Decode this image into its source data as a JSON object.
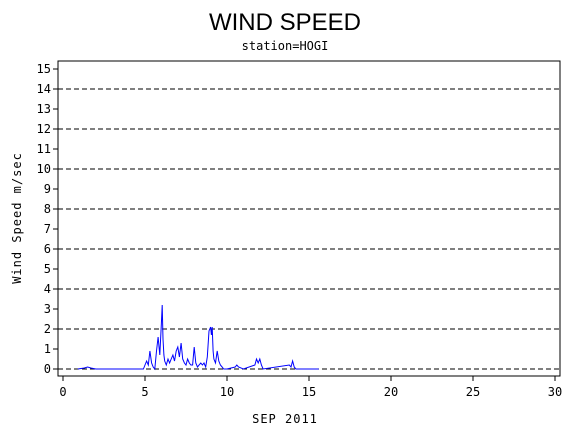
{
  "chart_data": {
    "type": "line",
    "title": "WIND SPEED",
    "subtitle": "station=HOGI",
    "xlabel": "SEP 2011",
    "ylabel": "Wind Speed m/sec",
    "xlim": [
      0,
      30
    ],
    "ylim": [
      0,
      15
    ],
    "x_ticks": [
      0,
      5,
      10,
      15,
      20,
      25,
      30
    ],
    "y_ticks": [
      0,
      1,
      2,
      3,
      4,
      5,
      6,
      7,
      8,
      9,
      10,
      11,
      12,
      13,
      14,
      15
    ],
    "grid": {
      "y_dashed_at": [
        0,
        2,
        4,
        6,
        8,
        10,
        12,
        14
      ]
    },
    "line_color": "#0000ff",
    "grid_color": "#000000",
    "series": [
      {
        "x": [
          0.9,
          1.3,
          1.5,
          1.7,
          2.0,
          4.9,
          5.0,
          5.1,
          5.2,
          5.3,
          5.4,
          5.5,
          5.6,
          5.7,
          5.8,
          5.9,
          6.0,
          6.05,
          6.1,
          6.15,
          6.2,
          6.3,
          6.4,
          6.5,
          6.6,
          6.7,
          6.8,
          6.9,
          7.0,
          7.1,
          7.2,
          7.25,
          7.3,
          7.4,
          7.5,
          7.6,
          7.7,
          7.8,
          7.9,
          8.0,
          8.1,
          8.2,
          8.3,
          8.4,
          8.5,
          8.6,
          8.7,
          8.8,
          8.9,
          9.0,
          9.05,
          9.1,
          9.15,
          9.2,
          9.3,
          9.4,
          9.5,
          9.6,
          9.7,
          9.8,
          10.0,
          10.5,
          10.6,
          10.7,
          11.0,
          11.7,
          11.8,
          11.9,
          12.0,
          12.1,
          12.2,
          13.8,
          13.9,
          14.0,
          14.1,
          14.2,
          15.6
        ],
        "y": [
          0.0,
          0.05,
          0.1,
          0.05,
          0.0,
          0.0,
          0.2,
          0.4,
          0.2,
          0.9,
          0.3,
          0.1,
          0.0,
          0.9,
          1.6,
          0.7,
          2.3,
          3.2,
          1.5,
          0.7,
          0.4,
          0.2,
          0.5,
          0.3,
          0.5,
          0.7,
          0.4,
          0.9,
          1.1,
          0.6,
          1.3,
          0.9,
          0.5,
          0.3,
          0.2,
          0.5,
          0.3,
          0.2,
          0.2,
          1.1,
          0.3,
          0.1,
          0.2,
          0.3,
          0.2,
          0.3,
          0.1,
          0.6,
          1.9,
          2.1,
          1.7,
          2.1,
          0.9,
          0.5,
          0.3,
          0.9,
          0.4,
          0.2,
          0.1,
          0.0,
          0.0,
          0.1,
          0.2,
          0.1,
          0.0,
          0.2,
          0.5,
          0.3,
          0.5,
          0.2,
          0.0,
          0.2,
          0.1,
          0.4,
          0.1,
          0.0,
          0.0
        ]
      }
    ]
  }
}
